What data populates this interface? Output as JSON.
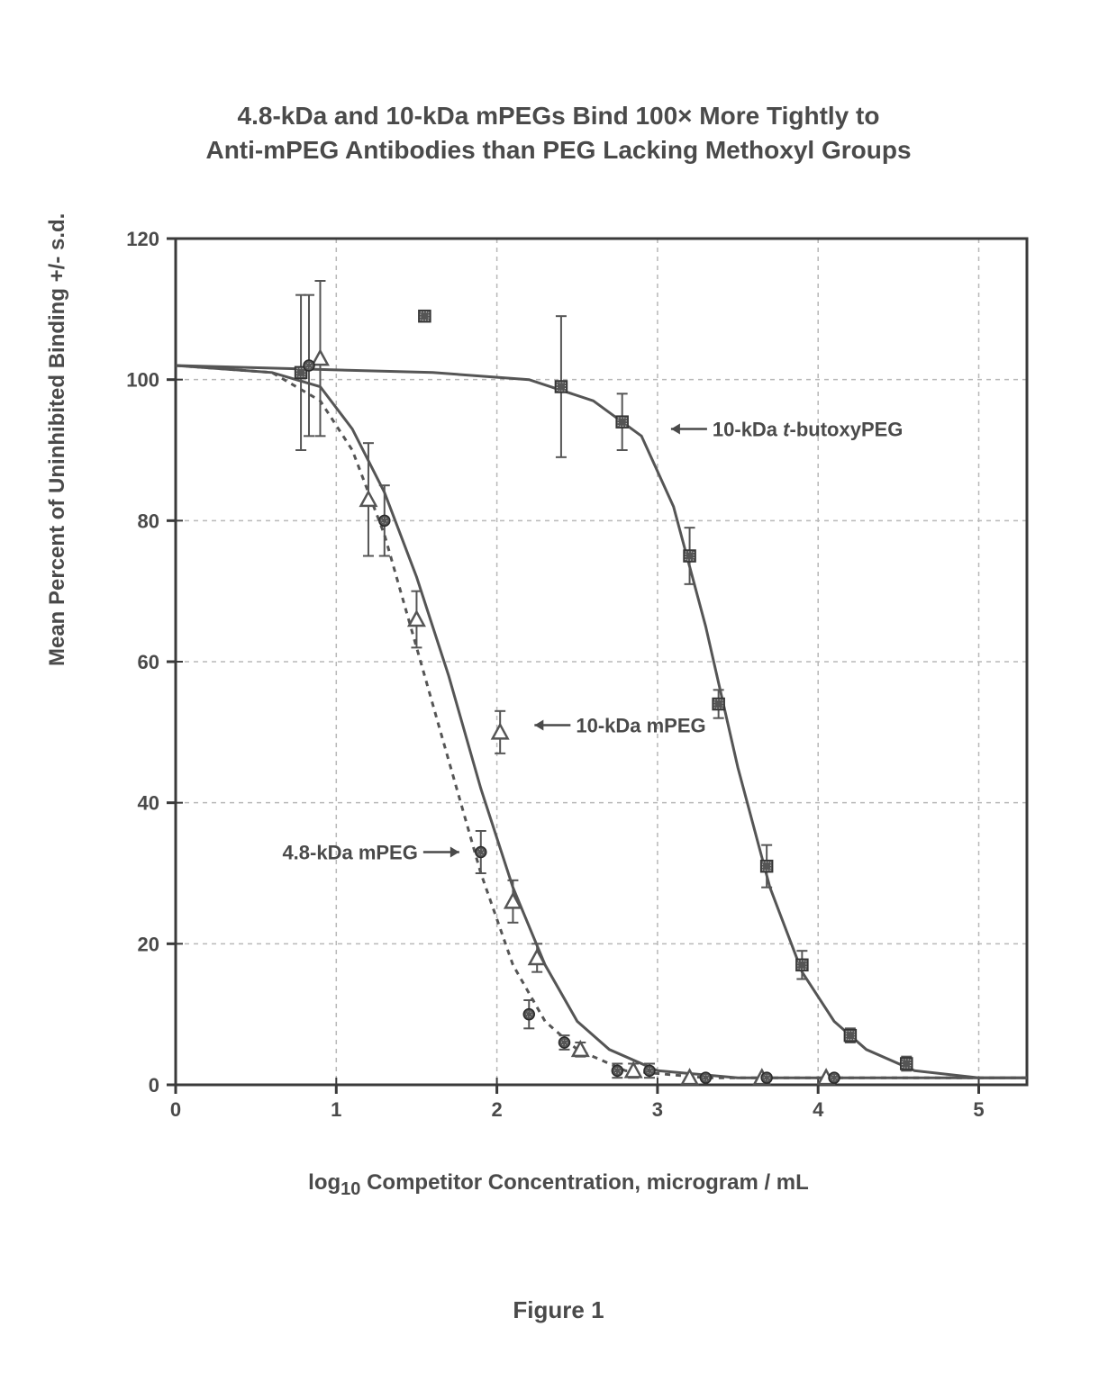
{
  "title_line1": "4.8-kDa and 10-kDa mPEGs Bind 100× More Tightly to",
  "title_line2": "Anti-mPEG Antibodies than PEG Lacking Methoxyl Groups",
  "ylabel": "Mean Percent of Uninhibited Binding  +/- s.d.",
  "xlabel": "log",
  "xlabel_sub": "10",
  "xlabel_rest": " Competitor Concentration, microgram / mL",
  "figure_caption": "Figure 1",
  "chart": {
    "type": "scatter",
    "background_color": "#ffffff",
    "grid_color": "#b8b8b8",
    "grid_dash": "5,5",
    "axis_color": "#3a3a3a",
    "tick_length": 10,
    "xlim": [
      0,
      5.3
    ],
    "ylim": [
      0,
      120
    ],
    "xticks": [
      0,
      1,
      2,
      3,
      4,
      5
    ],
    "yticks": [
      0,
      20,
      40,
      60,
      80,
      100,
      120
    ],
    "ytick_labels": [
      "0",
      "20",
      "40",
      "60",
      "80",
      "100",
      "120"
    ],
    "xtick_labels": [
      "0",
      "1",
      "2",
      "3",
      "4",
      "5"
    ],
    "series": [
      {
        "id": "tbutoxy",
        "label": "10-kDa t-butoxyPEG",
        "label_italic_word": "t-butoxyPEG",
        "marker": "square-dark",
        "marker_color": "#555555",
        "marker_size": 13,
        "line_dash": "",
        "line_color": "#555555",
        "line_width": 3,
        "label_x": 3.0,
        "label_y": 93,
        "label_anchor": "start",
        "label_arrow_dir": "left",
        "points": [
          {
            "x": 0.78,
            "y": 101,
            "err": 11
          },
          {
            "x": 1.55,
            "y": 109,
            "err": 0
          },
          {
            "x": 2.4,
            "y": 99,
            "err": 10
          },
          {
            "x": 2.78,
            "y": 94,
            "err": 4
          },
          {
            "x": 3.2,
            "y": 75,
            "err": 4
          },
          {
            "x": 3.38,
            "y": 54,
            "err": 2
          },
          {
            "x": 3.68,
            "y": 31,
            "err": 3
          },
          {
            "x": 3.9,
            "y": 17,
            "err": 2
          },
          {
            "x": 4.2,
            "y": 7,
            "err": 1
          },
          {
            "x": 4.55,
            "y": 3,
            "err": 1
          }
        ],
        "curve": [
          {
            "x": 0.0,
            "y": 102
          },
          {
            "x": 0.8,
            "y": 101.5
          },
          {
            "x": 1.6,
            "y": 101
          },
          {
            "x": 2.2,
            "y": 100
          },
          {
            "x": 2.6,
            "y": 97
          },
          {
            "x": 2.9,
            "y": 92
          },
          {
            "x": 3.1,
            "y": 82
          },
          {
            "x": 3.3,
            "y": 65
          },
          {
            "x": 3.5,
            "y": 45
          },
          {
            "x": 3.7,
            "y": 28
          },
          {
            "x": 3.9,
            "y": 16
          },
          {
            "x": 4.1,
            "y": 9
          },
          {
            "x": 4.3,
            "y": 5
          },
          {
            "x": 4.6,
            "y": 2
          },
          {
            "x": 5.0,
            "y": 1
          },
          {
            "x": 5.3,
            "y": 1
          }
        ]
      },
      {
        "id": "mpeg10",
        "label": "10-kDa mPEG",
        "marker": "triangle-open",
        "marker_color": "#555555",
        "marker_size": 14,
        "line_dash": "",
        "line_color": "#555555",
        "line_width": 3,
        "label_x": 2.15,
        "label_y": 51,
        "label_anchor": "start",
        "label_arrow_dir": "left",
        "points": [
          {
            "x": 0.9,
            "y": 103,
            "err": 11
          },
          {
            "x": 1.2,
            "y": 83,
            "err": 8
          },
          {
            "x": 1.5,
            "y": 66,
            "err": 4
          },
          {
            "x": 2.02,
            "y": 50,
            "err": 3
          },
          {
            "x": 2.1,
            "y": 26,
            "err": 3
          },
          {
            "x": 2.25,
            "y": 18,
            "err": 2
          },
          {
            "x": 2.52,
            "y": 5,
            "err": 1
          },
          {
            "x": 2.85,
            "y": 2,
            "err": 1
          },
          {
            "x": 3.2,
            "y": 1,
            "err": 0
          },
          {
            "x": 3.65,
            "y": 1,
            "err": 0
          },
          {
            "x": 4.05,
            "y": 1,
            "err": 0
          }
        ],
        "curve": [
          {
            "x": 0.0,
            "y": 102
          },
          {
            "x": 0.6,
            "y": 101
          },
          {
            "x": 0.9,
            "y": 99
          },
          {
            "x": 1.1,
            "y": 93
          },
          {
            "x": 1.3,
            "y": 84
          },
          {
            "x": 1.5,
            "y": 72
          },
          {
            "x": 1.7,
            "y": 58
          },
          {
            "x": 1.9,
            "y": 42
          },
          {
            "x": 2.1,
            "y": 28
          },
          {
            "x": 2.3,
            "y": 17
          },
          {
            "x": 2.5,
            "y": 9
          },
          {
            "x": 2.7,
            "y": 5
          },
          {
            "x": 3.0,
            "y": 2
          },
          {
            "x": 3.5,
            "y": 1
          },
          {
            "x": 4.5,
            "y": 1
          },
          {
            "x": 5.3,
            "y": 1
          }
        ]
      },
      {
        "id": "mpeg48",
        "label": "4.8-kDa mPEG",
        "marker": "circle-dark",
        "marker_color": "#555555",
        "marker_size": 12,
        "line_dash": "6,6",
        "line_color": "#555555",
        "line_width": 3,
        "label_x": 1.85,
        "label_y": 33,
        "label_anchor": "end",
        "label_arrow_dir": "right",
        "points": [
          {
            "x": 0.83,
            "y": 102,
            "err": 10
          },
          {
            "x": 1.3,
            "y": 80,
            "err": 5
          },
          {
            "x": 1.9,
            "y": 33,
            "err": 3
          },
          {
            "x": 2.2,
            "y": 10,
            "err": 2
          },
          {
            "x": 2.42,
            "y": 6,
            "err": 1
          },
          {
            "x": 2.75,
            "y": 2,
            "err": 1
          },
          {
            "x": 2.95,
            "y": 2,
            "err": 1
          },
          {
            "x": 3.3,
            "y": 1,
            "err": 0
          },
          {
            "x": 3.68,
            "y": 1,
            "err": 0
          },
          {
            "x": 4.1,
            "y": 1,
            "err": 0
          }
        ],
        "curve": [
          {
            "x": 0.0,
            "y": 102
          },
          {
            "x": 0.6,
            "y": 101
          },
          {
            "x": 0.9,
            "y": 97
          },
          {
            "x": 1.1,
            "y": 90
          },
          {
            "x": 1.3,
            "y": 78
          },
          {
            "x": 1.5,
            "y": 62
          },
          {
            "x": 1.7,
            "y": 46
          },
          {
            "x": 1.9,
            "y": 30
          },
          {
            "x": 2.1,
            "y": 17
          },
          {
            "x": 2.3,
            "y": 9
          },
          {
            "x": 2.5,
            "y": 5
          },
          {
            "x": 2.8,
            "y": 2
          },
          {
            "x": 3.3,
            "y": 1
          },
          {
            "x": 4.0,
            "y": 1
          },
          {
            "x": 5.3,
            "y": 1
          }
        ]
      }
    ]
  }
}
